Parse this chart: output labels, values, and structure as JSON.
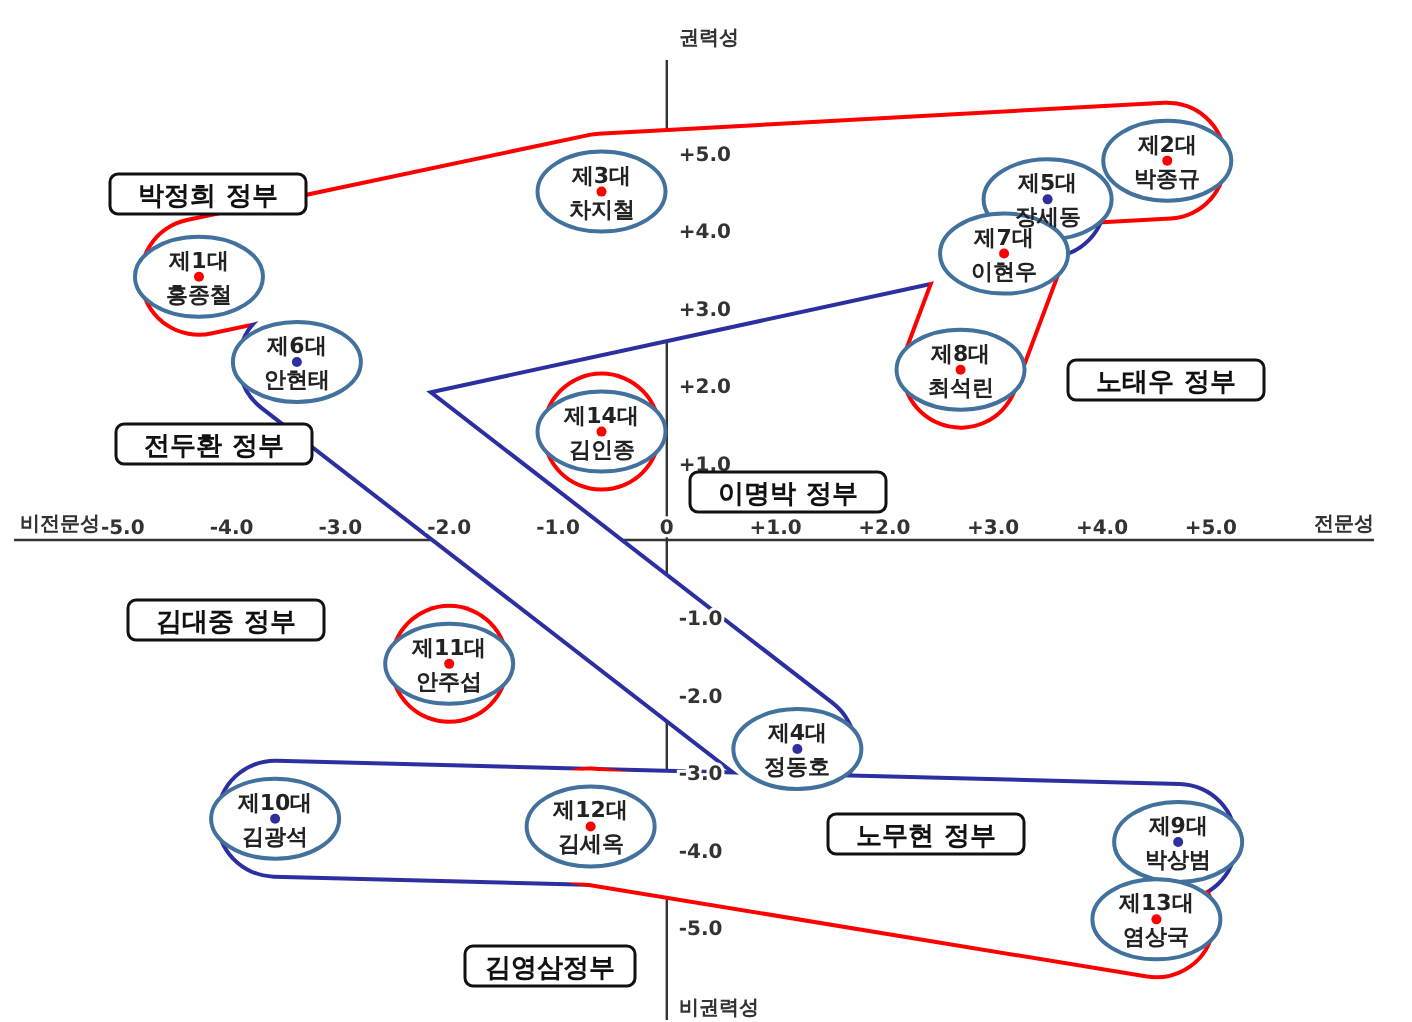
{
  "chart_data": {
    "type": "scatter",
    "xlabel": "전문성",
    "ylabel": "권력성",
    "xlim": [
      -6,
      6.5
    ],
    "ylim": [
      -6.2,
      6.2
    ],
    "xticks": [
      {
        "value": -5,
        "label": "-5.0"
      },
      {
        "value": -4,
        "label": "-4.0"
      },
      {
        "value": -3,
        "label": "-3.0"
      },
      {
        "value": -2,
        "label": "-2.0"
      },
      {
        "value": -1,
        "label": "-1.0"
      },
      0,
      {
        "value": 1,
        "label": "+1.0"
      },
      {
        "value": 2,
        "label": "+2.0"
      },
      {
        "value": 3,
        "label": "+3.0"
      },
      {
        "value": 4,
        "label": "+4.0"
      },
      {
        "value": 5,
        "label": "+5.0"
      }
    ],
    "yticks": [
      {
        "value": 5,
        "label": "+5.0"
      },
      {
        "value": 4,
        "label": "+4.0"
      },
      {
        "value": 3,
        "label": "+3.0"
      },
      {
        "value": 2,
        "label": "+2.0"
      },
      {
        "value": 1,
        "label": "+1.0"
      },
      {
        "value": -1,
        "label": "-1.0"
      },
      {
        "value": -2,
        "label": "-2.0"
      },
      {
        "value": -3,
        "label": "-3.0"
      },
      {
        "value": -4,
        "label": "-4.0"
      },
      {
        "value": -5,
        "label": "-5.0"
      }
    ],
    "grid": false,
    "marker": "circle",
    "series": [
      {
        "color": "#ff0000",
        "x": [
          -4.3,
          -0.6,
          4.6
        ],
        "values": [
          3.4,
          4.5,
          4.9
        ],
        "value_labels": [
          "제1대 홍종철",
          "제3대 차지철",
          "제2대 박종규"
        ]
      },
      {
        "color": "#2b2fa0",
        "x": [
          3.5,
          -3.4,
          1.2
        ],
        "values": [
          4.4,
          2.3,
          -2.7
        ],
        "value_labels": [
          "제5대 장세동",
          "제6대 안현태",
          "제4대 정동호"
        ]
      },
      {
        "color": "#ff0000",
        "x": [
          3.1,
          2.7
        ],
        "values": [
          3.7,
          2.2
        ],
        "value_labels": [
          "제7대 이현우",
          "제8대 최석린"
        ]
      },
      {
        "color": "#ff0000",
        "x": [
          -0.6
        ],
        "values": [
          1.4
        ],
        "value_labels": [
          "제14대 김인종"
        ]
      },
      {
        "color": "#ff0000",
        "x": [
          -2.0
        ],
        "values": [
          -1.6
        ],
        "value_labels": [
          "제11대 안주섭"
        ]
      },
      {
        "color": "#2b2fa0",
        "x": [
          -3.6,
          4.7
        ],
        "values": [
          -3.6,
          -3.9
        ],
        "value_labels": [
          "제10대 김광석",
          "제9대 박상범"
        ]
      },
      {
        "color": "#ff0000",
        "x": [
          -0.7,
          4.5
        ],
        "values": [
          -3.7,
          -4.9
        ],
        "value_labels": [
          "제12대 김세옥",
          "제13대 염상국"
        ]
      }
    ],
    "annotations": [
      "박정희 정부",
      "전두환 정부",
      "노태우 정부",
      "이명박 정부",
      "김대중 정부",
      "노무현 정부",
      "김영삼정부",
      "비전문성",
      "비권력성"
    ]
  }
}
